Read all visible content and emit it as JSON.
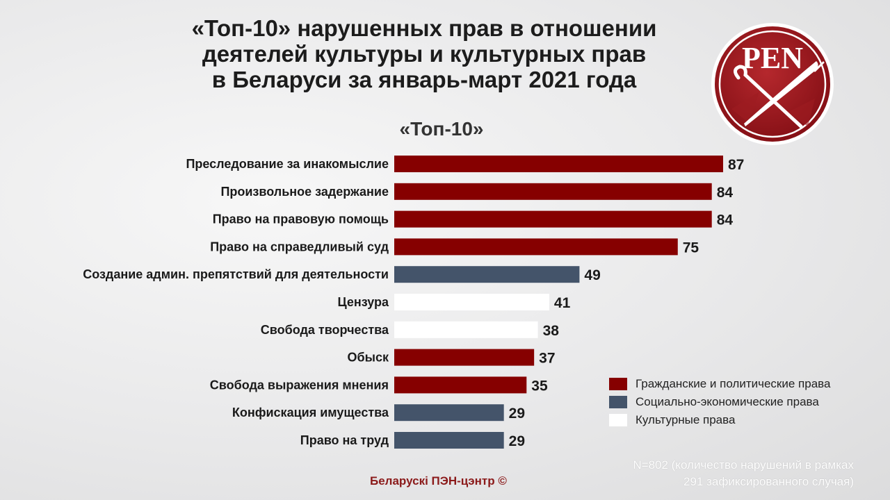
{
  "title_lines": [
    "«Топ-10» нарушенных прав в отношении",
    "деятелей культуры и культурных прав",
    "в Беларуси за январь-март 2021 года"
  ],
  "logo_text": "PEN",
  "colors": {
    "civil_political": "#860000",
    "socio_economic": "#44546a",
    "cultural": "#ffffff"
  },
  "chart_data": {
    "type": "bar",
    "orientation": "horizontal",
    "title": "«Топ-10»",
    "categories": [
      "Преследование за инакомыслие",
      "Произвольное задержание",
      "Право на правовую помощь",
      "Право на справедливый суд",
      "Создание админ. препятствий для деятельности",
      "Цензура",
      "Свобода творчества",
      "Обыск",
      "Свобода выражения мнения",
      "Конфискация имущества",
      "Право на труд"
    ],
    "values": [
      87,
      84,
      84,
      75,
      49,
      41,
      38,
      37,
      35,
      29,
      29
    ],
    "groups": [
      "civil_political",
      "civil_political",
      "civil_political",
      "civil_political",
      "socio_economic",
      "cultural",
      "cultural",
      "civil_political",
      "civil_political",
      "socio_economic",
      "socio_economic"
    ],
    "xlim": [
      0,
      87
    ],
    "grid": false,
    "legend_position": "bottom-right"
  },
  "legend": [
    {
      "key": "civil_political",
      "label": "Гражданские и политические права"
    },
    {
      "key": "socio_economic",
      "label": "Социально-экономические  права"
    },
    {
      "key": "cultural",
      "label": "Культурные права"
    }
  ],
  "note_lines": [
    "N=802 (количество нарушений  в рамках",
    "291 зафиксированного  случая)"
  ],
  "footer": "Беларускі ПЭН-цэнтр ©"
}
